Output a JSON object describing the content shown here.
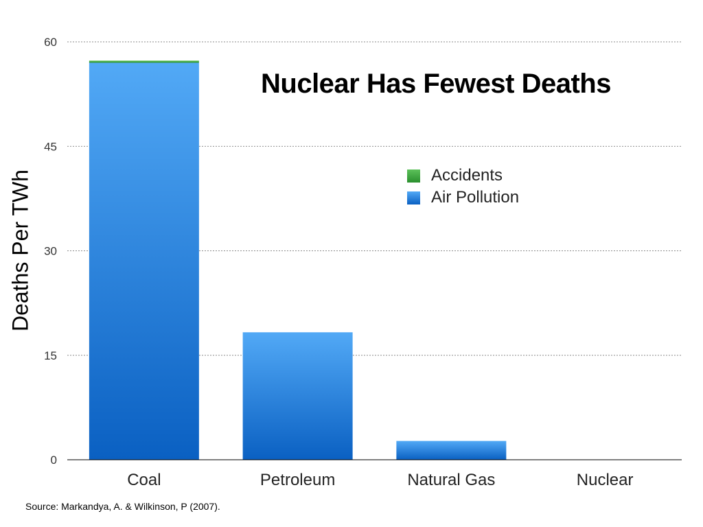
{
  "chart_data": {
    "type": "bar",
    "stacked": true,
    "title": "Nuclear Has Fewest Deaths",
    "ylabel": "Deaths Per TWh",
    "xlabel": "",
    "categories": [
      "Coal",
      "Petroleum",
      "Natural Gas",
      "Nuclear"
    ],
    "series": [
      {
        "name": "Air Pollution",
        "values": [
          57.0,
          18.3,
          2.7,
          0.0
        ],
        "color": "#2a86dc"
      },
      {
        "name": "Accidents",
        "values": [
          0.3,
          0.0,
          0.0,
          0.0
        ],
        "color": "#3aa13e"
      }
    ],
    "ylim": [
      0,
      60
    ],
    "yticks": [
      "0",
      "15",
      "30",
      "45",
      "60"
    ],
    "grid": true,
    "legend_position": "upper-right",
    "legend_order": [
      "Accidents",
      "Air Pollution"
    ]
  },
  "source": "Source: Markandya, A. & Wilkinson, P (2007)."
}
